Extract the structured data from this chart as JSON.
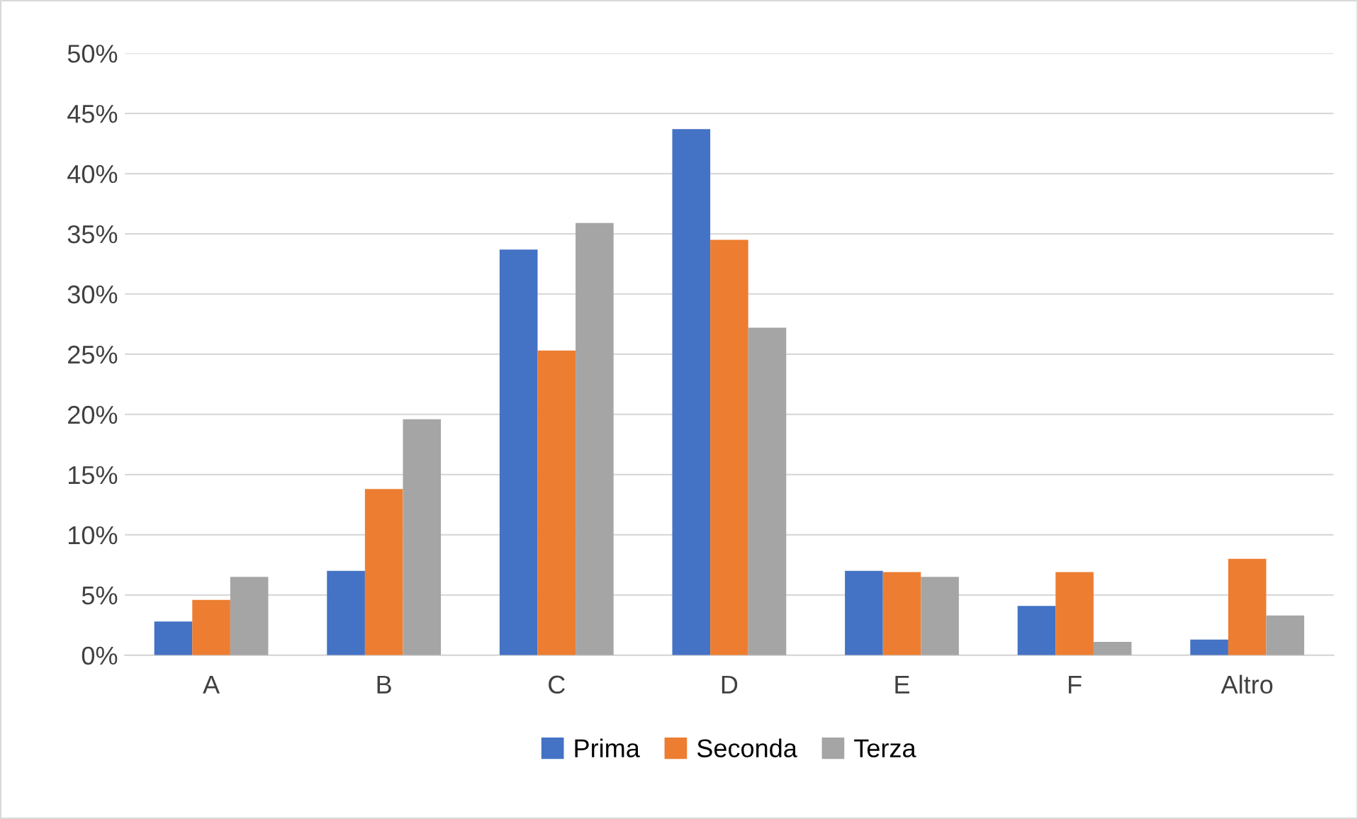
{
  "chart_data": {
    "type": "bar",
    "categories": [
      "A",
      "B",
      "C",
      "D",
      "E",
      "F",
      "Altro"
    ],
    "series": [
      {
        "name": "Prima",
        "color": "#4472c4",
        "values": [
          2.8,
          7.0,
          33.7,
          43.7,
          7.0,
          4.1,
          1.3
        ]
      },
      {
        "name": "Seconda",
        "color": "#ed7d31",
        "values": [
          4.6,
          13.8,
          25.3,
          34.5,
          6.9,
          6.9,
          8.0
        ]
      },
      {
        "name": "Terza",
        "color": "#a5a5a5",
        "values": [
          6.5,
          19.6,
          35.9,
          27.2,
          6.5,
          1.1,
          3.3
        ]
      }
    ],
    "ylim": [
      0,
      50
    ],
    "yticks": [
      {
        "value": 0,
        "label": "0%"
      },
      {
        "value": 5,
        "label": "5%"
      },
      {
        "value": 10,
        "label": "10%"
      },
      {
        "value": 15,
        "label": "15%"
      },
      {
        "value": 20,
        "label": "20%"
      },
      {
        "value": 25,
        "label": "25%"
      },
      {
        "value": 30,
        "label": "30%"
      },
      {
        "value": 35,
        "label": "35%"
      },
      {
        "value": 40,
        "label": "40%"
      },
      {
        "value": 45,
        "label": "45%"
      },
      {
        "value": 50,
        "label": "50%"
      }
    ],
    "grid": "y",
    "legend": "bottom"
  }
}
